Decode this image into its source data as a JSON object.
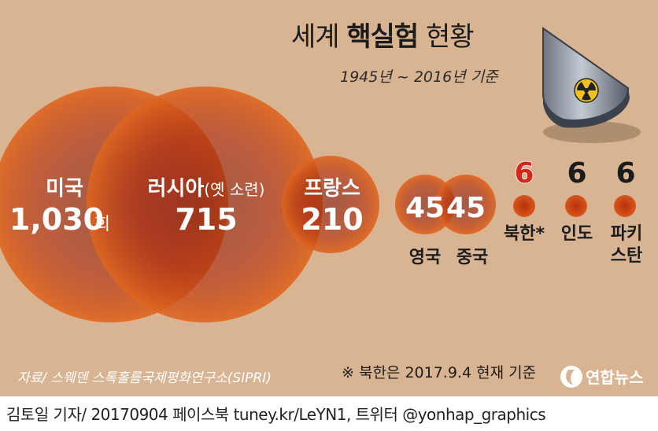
{
  "chart_data": {
    "type": "bubble",
    "title_prefix": "세계 ",
    "title_bold": "핵실험",
    "title_suffix": " 현황",
    "subtitle": "1945년 ~ 2016년 기준",
    "categories": [
      "미국",
      "러시아",
      "프랑스",
      "영국",
      "중국",
      "북한*",
      "인도",
      "파키스탄"
    ],
    "values": [
      1030,
      715,
      210,
      45,
      45,
      6,
      6,
      6
    ],
    "value_labels": [
      "1,030",
      "715",
      "210",
      "45",
      "45",
      "6",
      "6",
      "6"
    ],
    "unit": "회",
    "russia_note": "(옛 소련)",
    "highlight_category": "북한*",
    "colors": {
      "background": "#d8b493",
      "bubble": "#c13a14",
      "highlight": "#d4261c",
      "dark_text": "#1c1c1c"
    }
  },
  "source": "자료/ 스웨덴 스톡홀름국제평화연구소(SIPRI)",
  "footnote": "※ 북한은 2017.9.4 현재 기준",
  "logo_text": "연합뉴스",
  "footer": "김토일 기자/ 20170904 페이스북 tuney.kr/LeYN1, 트위터 @yonhap_graphics",
  "icons": [
    "nuclear-warhead-icon",
    "radiation-symbol-icon",
    "yonhap-logo-icon"
  ]
}
